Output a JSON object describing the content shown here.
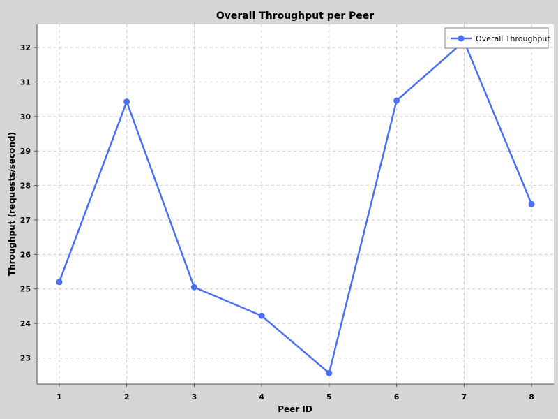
{
  "chart_data": {
    "type": "line",
    "title": "Overall Throughput per Peer",
    "xlabel": "Peer ID",
    "ylabel": "Throughput (requests/second)",
    "x": [
      1,
      2,
      3,
      4,
      5,
      6,
      7,
      8
    ],
    "series": [
      {
        "name": "Overall Throughput",
        "values": [
          25.2,
          30.43,
          25.05,
          24.22,
          22.56,
          30.46,
          32.18,
          27.46
        ]
      }
    ],
    "xlim": [
      0.67,
      8.33
    ],
    "ylim": [
      22.24,
      32.67
    ],
    "xticks": [
      1,
      2,
      3,
      4,
      5,
      6,
      7,
      8
    ],
    "yticks": [
      23,
      24,
      25,
      26,
      27,
      28,
      29,
      30,
      31,
      32
    ],
    "grid": true,
    "legend_position": "top-right",
    "colors": {
      "series": "#4a6ef5",
      "plot_background": "#ffffff",
      "page_background": "#d6d6d6",
      "grid": "#c8c8c8"
    }
  }
}
